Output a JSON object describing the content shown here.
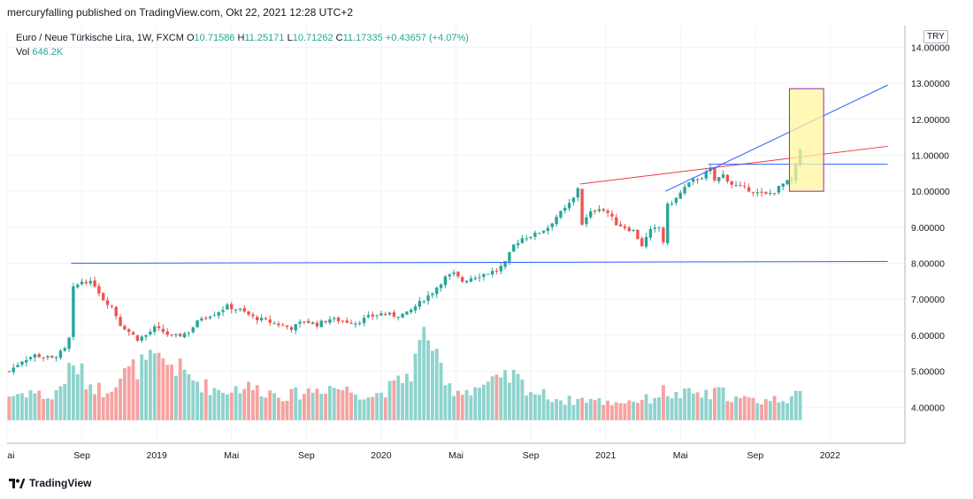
{
  "header": {
    "published_text": "mercuryfalling published on TradingView.com, Okt 22, 2021 12:28 UTC+2"
  },
  "legend": {
    "symbol": "Euro  / Neue Türkische Lira, 1W, FXCM",
    "open_label": "O",
    "open": "10.71586",
    "high_label": "H",
    "high": "11.25171",
    "low_label": "L",
    "low": "10.71262",
    "close_label": "C",
    "close": "11.17335",
    "change": "+0.43657 (+4.07%)",
    "vol_label": "Vol",
    "vol_value": "646.2K"
  },
  "currency_badge": "TRY",
  "footer": {
    "brand": "TradingView"
  },
  "colors": {
    "up": "#26a69a",
    "down": "#ef5350",
    "vol_up": "#8fd3cd",
    "vol_down": "#f5a3a1",
    "trend_blue": "#2962ff",
    "trend_red": "#f23645",
    "highlight_fill": "#fff59d",
    "highlight_stroke": "#9c27b0"
  },
  "chart_data": {
    "type": "candlestick",
    "title": "Euro  / Neue Türkische Lira, 1W, FXCM",
    "y_ticks": [
      "14.00000",
      "13.00000",
      "12.00000",
      "11.00000",
      "10.00000",
      "9.00000",
      "8.00000",
      "7.00000",
      "6.00000",
      "5.00000",
      "4.00000"
    ],
    "y_range": [
      3.0,
      14.6
    ],
    "x_ticks": [
      {
        "label": "Mai",
        "week": 0
      },
      {
        "label": "Sep",
        "week": 17.5
      },
      {
        "label": "2019",
        "week": 35
      },
      {
        "label": "Mai",
        "week": 52.5
      },
      {
        "label": "Sep",
        "week": 70
      },
      {
        "label": "2020",
        "week": 87.5
      },
      {
        "label": "Mai",
        "week": 105
      },
      {
        "label": "Sep",
        "week": 122.5
      },
      {
        "label": "2021",
        "week": 140
      },
      {
        "label": "Mai",
        "week": 157.5
      },
      {
        "label": "Sep",
        "week": 175
      },
      {
        "label": "2022",
        "week": 192.5
      }
    ],
    "week_range": [
      0,
      210
    ],
    "price_anchors": [
      [
        0,
        5.0
      ],
      [
        3,
        5.3
      ],
      [
        6,
        5.45
      ],
      [
        10,
        5.35
      ],
      [
        13,
        5.6
      ],
      [
        14,
        5.9
      ],
      [
        15,
        7.3
      ],
      [
        17,
        7.5
      ],
      [
        18,
        7.5
      ],
      [
        20,
        7.4
      ],
      [
        22,
        7.0
      ],
      [
        24,
        6.8
      ],
      [
        26,
        6.3
      ],
      [
        28,
        6.1
      ],
      [
        30,
        5.9
      ],
      [
        32,
        6.0
      ],
      [
        34,
        6.2
      ],
      [
        36,
        6.1
      ],
      [
        38,
        5.95
      ],
      [
        40,
        6.0
      ],
      [
        42,
        6.1
      ],
      [
        45,
        6.5
      ],
      [
        48,
        6.6
      ],
      [
        51,
        6.8
      ],
      [
        54,
        6.7
      ],
      [
        57,
        6.5
      ],
      [
        60,
        6.4
      ],
      [
        63,
        6.3
      ],
      [
        66,
        6.2
      ],
      [
        69,
        6.4
      ],
      [
        72,
        6.3
      ],
      [
        75,
        6.45
      ],
      [
        78,
        6.4
      ],
      [
        81,
        6.35
      ],
      [
        84,
        6.5
      ],
      [
        87,
        6.6
      ],
      [
        90,
        6.55
      ],
      [
        93,
        6.6
      ],
      [
        96,
        6.9
      ],
      [
        99,
        7.2
      ],
      [
        102,
        7.6
      ],
      [
        104,
        7.7
      ],
      [
        106,
        7.5
      ],
      [
        108,
        7.6
      ],
      [
        111,
        7.7
      ],
      [
        114,
        7.8
      ],
      [
        116,
        8.0
      ],
      [
        118,
        8.5
      ],
      [
        120,
        8.7
      ],
      [
        123,
        8.8
      ],
      [
        126,
        9.0
      ],
      [
        128,
        9.3
      ],
      [
        130,
        9.5
      ],
      [
        132,
        9.8
      ],
      [
        133,
        10.1
      ],
      [
        134,
        9.1
      ],
      [
        136,
        9.4
      ],
      [
        138,
        9.55
      ],
      [
        140,
        9.4
      ],
      [
        142,
        9.1
      ],
      [
        144,
        9.0
      ],
      [
        146,
        8.9
      ],
      [
        148,
        8.5
      ],
      [
        150,
        8.9
      ],
      [
        152,
        9.0
      ],
      [
        153,
        8.6
      ],
      [
        154,
        9.6
      ],
      [
        156,
        9.8
      ],
      [
        158,
        10.1
      ],
      [
        160,
        10.3
      ],
      [
        162,
        10.4
      ],
      [
        164,
        10.6
      ],
      [
        165,
        10.3
      ],
      [
        167,
        10.45
      ],
      [
        169,
        10.2
      ],
      [
        171,
        10.1
      ],
      [
        173,
        10.05
      ],
      [
        175,
        9.95
      ],
      [
        177,
        9.9
      ],
      [
        179,
        10.0
      ],
      [
        181,
        10.2
      ],
      [
        183,
        10.3
      ],
      [
        184,
        10.7
      ],
      [
        185,
        11.17
      ]
    ],
    "volume_anchors": [
      [
        0,
        0.25
      ],
      [
        5,
        0.3
      ],
      [
        10,
        0.22
      ],
      [
        14,
        0.5
      ],
      [
        16,
        0.55
      ],
      [
        18,
        0.4
      ],
      [
        22,
        0.3
      ],
      [
        26,
        0.45
      ],
      [
        30,
        0.55
      ],
      [
        34,
        0.6
      ],
      [
        38,
        0.58
      ],
      [
        42,
        0.45
      ],
      [
        46,
        0.35
      ],
      [
        50,
        0.3
      ],
      [
        55,
        0.35
      ],
      [
        60,
        0.3
      ],
      [
        65,
        0.25
      ],
      [
        70,
        0.3
      ],
      [
        75,
        0.35
      ],
      [
        80,
        0.3
      ],
      [
        85,
        0.25
      ],
      [
        90,
        0.35
      ],
      [
        94,
        0.5
      ],
      [
        96,
        0.75
      ],
      [
        98,
        0.95
      ],
      [
        100,
        0.6
      ],
      [
        102,
        0.35
      ],
      [
        106,
        0.3
      ],
      [
        110,
        0.35
      ],
      [
        115,
        0.4
      ],
      [
        118,
        0.45
      ],
      [
        122,
        0.3
      ],
      [
        126,
        0.25
      ],
      [
        130,
        0.2
      ],
      [
        135,
        0.22
      ],
      [
        140,
        0.18
      ],
      [
        145,
        0.2
      ],
      [
        150,
        0.22
      ],
      [
        153,
        0.3
      ],
      [
        156,
        0.25
      ],
      [
        160,
        0.28
      ],
      [
        164,
        0.25
      ],
      [
        166,
        0.3
      ],
      [
        170,
        0.22
      ],
      [
        175,
        0.2
      ],
      [
        180,
        0.22
      ],
      [
        185,
        0.25
      ]
    ],
    "trendlines": [
      {
        "color": "blue",
        "from": [
          15,
          8.0
        ],
        "to": [
          206,
          8.05
        ]
      },
      {
        "color": "red",
        "from": [
          134,
          10.2
        ],
        "to": [
          206,
          11.25
        ]
      },
      {
        "color": "blue",
        "from": [
          164,
          10.75
        ],
        "to": [
          206,
          10.75
        ]
      },
      {
        "color": "blue",
        "from": [
          154,
          10.0
        ],
        "to": [
          206,
          12.95
        ]
      }
    ],
    "highlight_box": {
      "week_from": 183,
      "week_to": 191,
      "price_from": 10.0,
      "price_to": 12.85
    }
  }
}
